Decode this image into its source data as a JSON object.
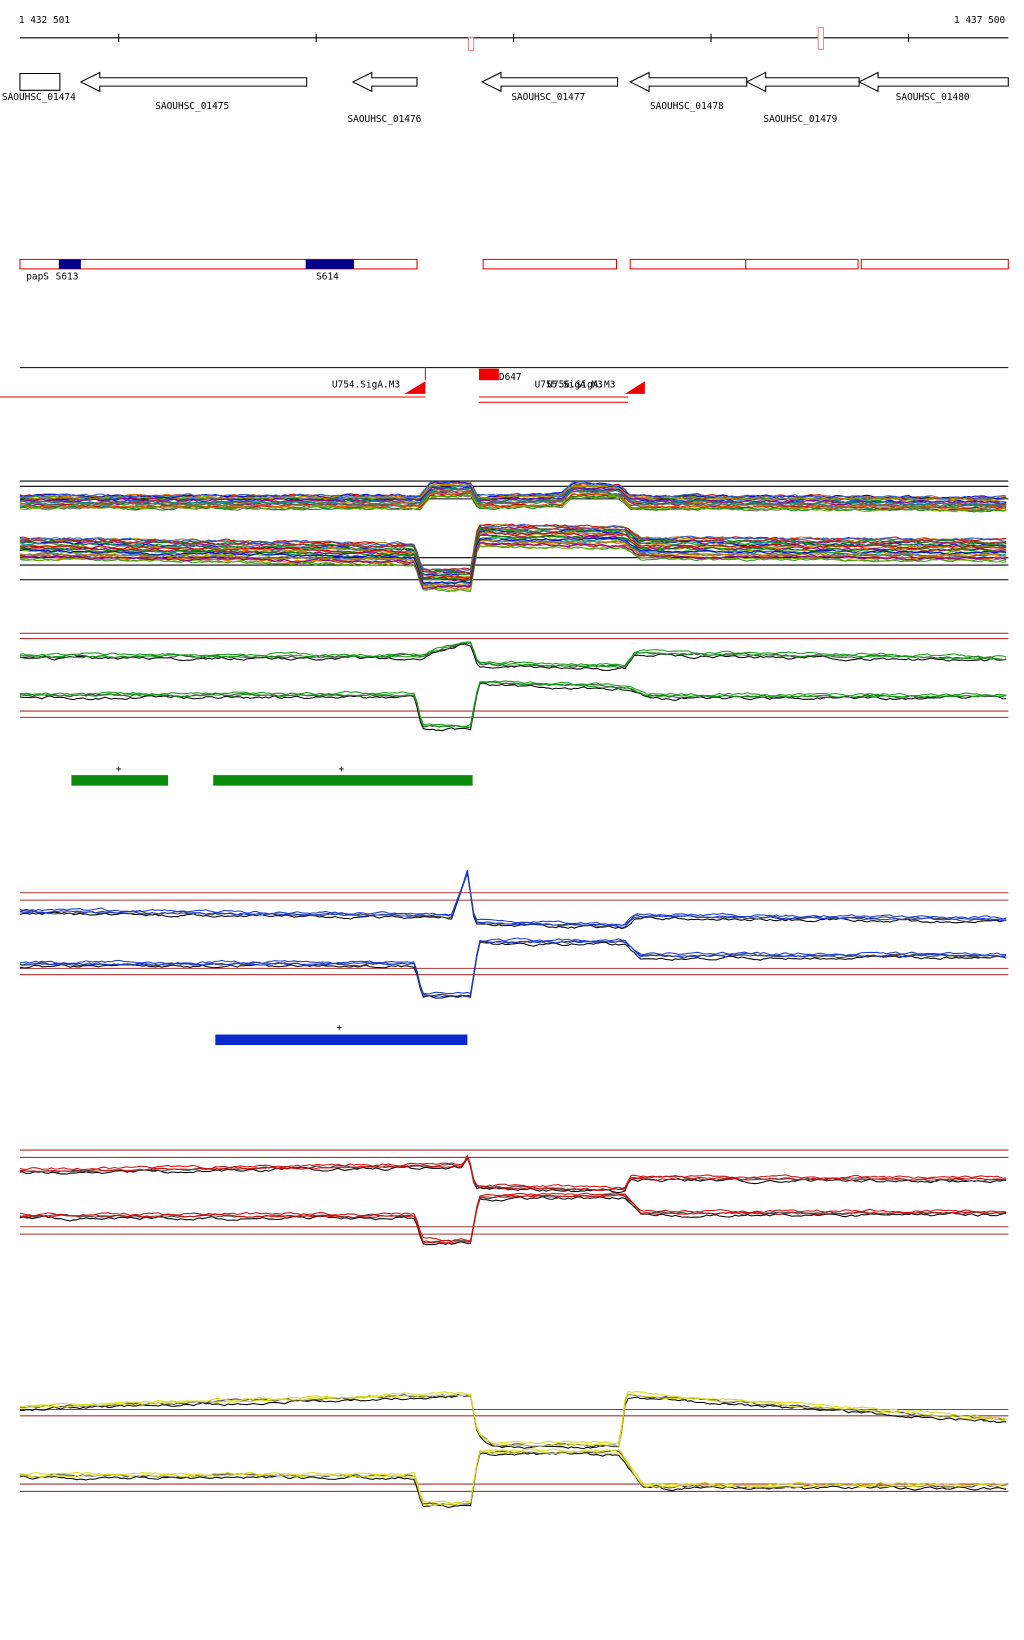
{
  "ruler": {
    "start": "1 432 501",
    "end": "1 437 500"
  },
  "genes": [
    "SAOUHSC_01474",
    "SAOUHSC_01475",
    "SAOUHSC_01476",
    "SAOUHSC_01477",
    "SAOUHSC_01478",
    "SAOUHSC_01479",
    "SAOUHSC_01480"
  ],
  "operons": [
    "papS",
    "S613",
    "S614"
  ],
  "promoters": [
    "U754.SigA.M3",
    "D647",
    "U755.SigA.M3",
    "U756.SigA.M3"
  ],
  "segments": {
    "green": [
      "+",
      "+"
    ],
    "blue": [
      "+"
    ]
  }
}
